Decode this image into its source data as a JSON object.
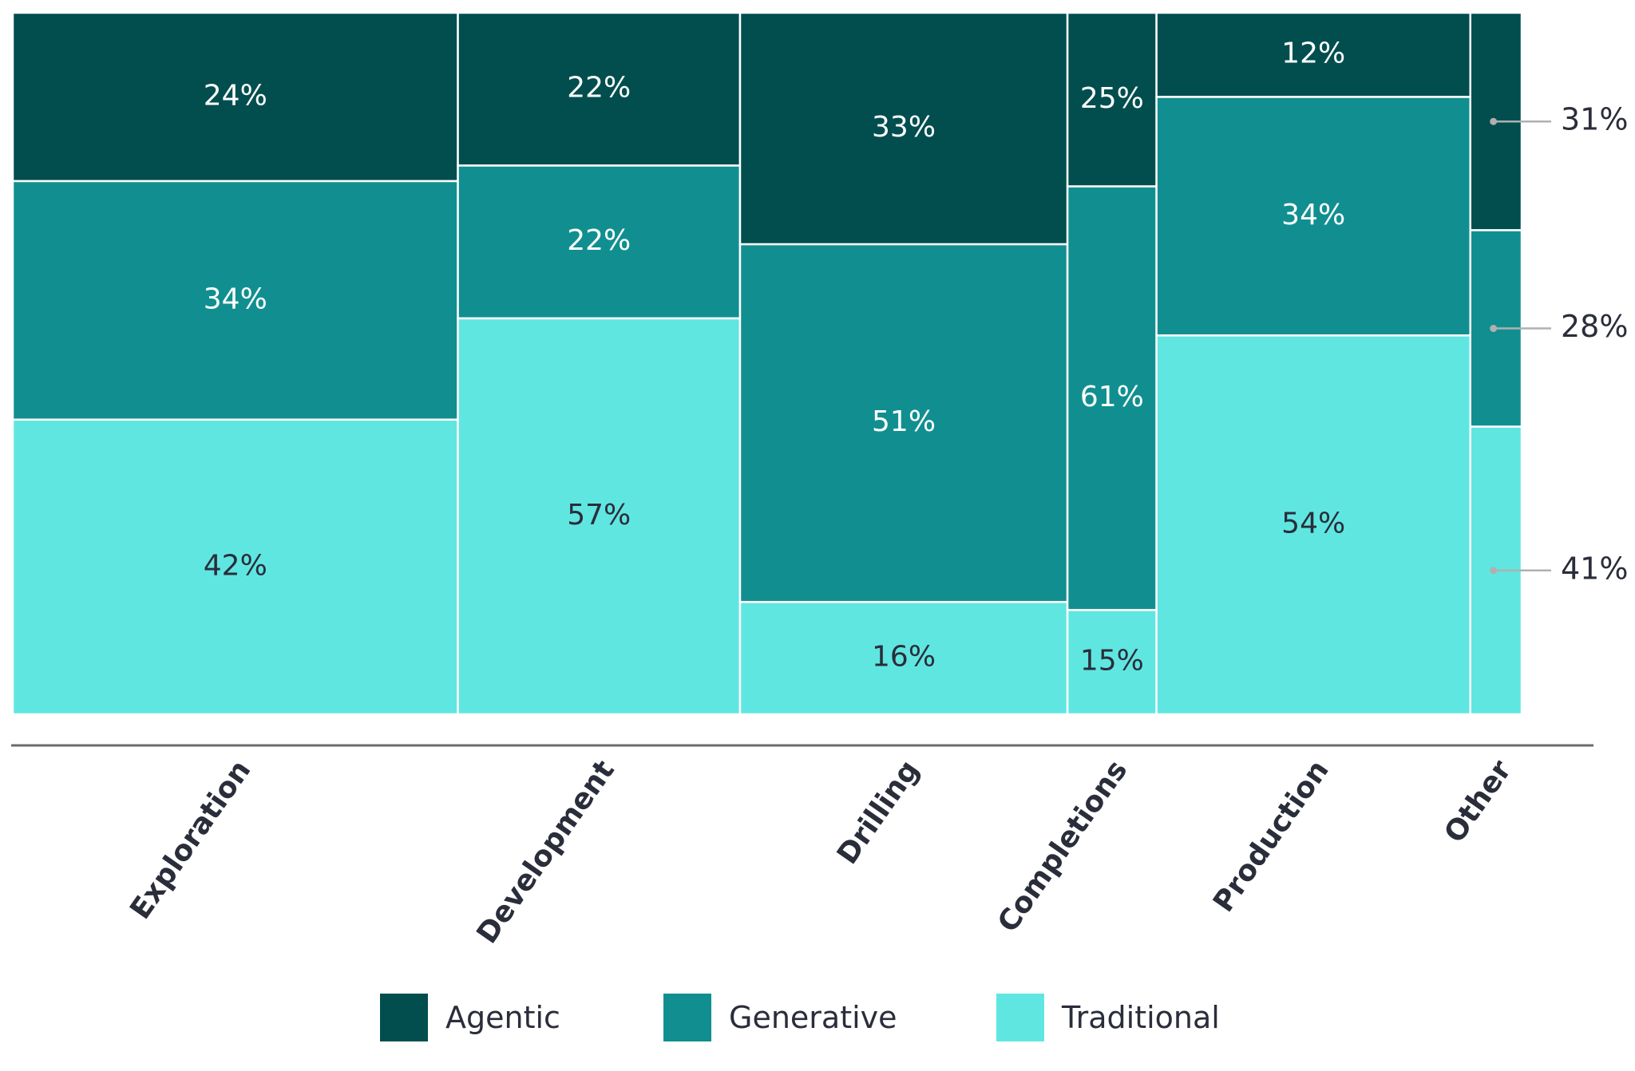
{
  "chart_data": {
    "type": "bar",
    "subtype": "marimekko",
    "categories": [
      "Exploration",
      "Development",
      "Drilling",
      "Completions",
      "Production",
      "Other"
    ],
    "category_share": [
      0.295,
      0.187,
      0.217,
      0.059,
      0.208,
      0.034
    ],
    "series": [
      {
        "name": "Agentic",
        "values": [
          24,
          22,
          33,
          25,
          12,
          31
        ],
        "labels": [
          "24%",
          "22%",
          "33%",
          "25%",
          "12%",
          "31%"
        ]
      },
      {
        "name": "Generative",
        "values": [
          34,
          22,
          51,
          61,
          34,
          28
        ],
        "labels": [
          "34%",
          "22%",
          "51%",
          "61%",
          "34%",
          "28%"
        ]
      },
      {
        "name": "Traditional",
        "values": [
          42,
          57,
          16,
          15,
          54,
          41
        ],
        "labels": [
          "42%",
          "57%",
          "16%",
          "15%",
          "54%",
          "41%"
        ]
      }
    ],
    "ylim": [
      0,
      100
    ],
    "legend_position": "bottom",
    "callout_category": "Other"
  },
  "colors": {
    "Agentic": "#024e4f",
    "Generative": "#118f90",
    "Traditional": "#60e6e1",
    "label_dark_bg": "#ffffff",
    "label_light_bg": "#2a2d3a",
    "axis": "#6b6b6b",
    "callout": "#b0b0b0"
  },
  "legend": {
    "items": [
      {
        "label": "Agentic"
      },
      {
        "label": "Generative"
      },
      {
        "label": "Traditional"
      }
    ]
  }
}
